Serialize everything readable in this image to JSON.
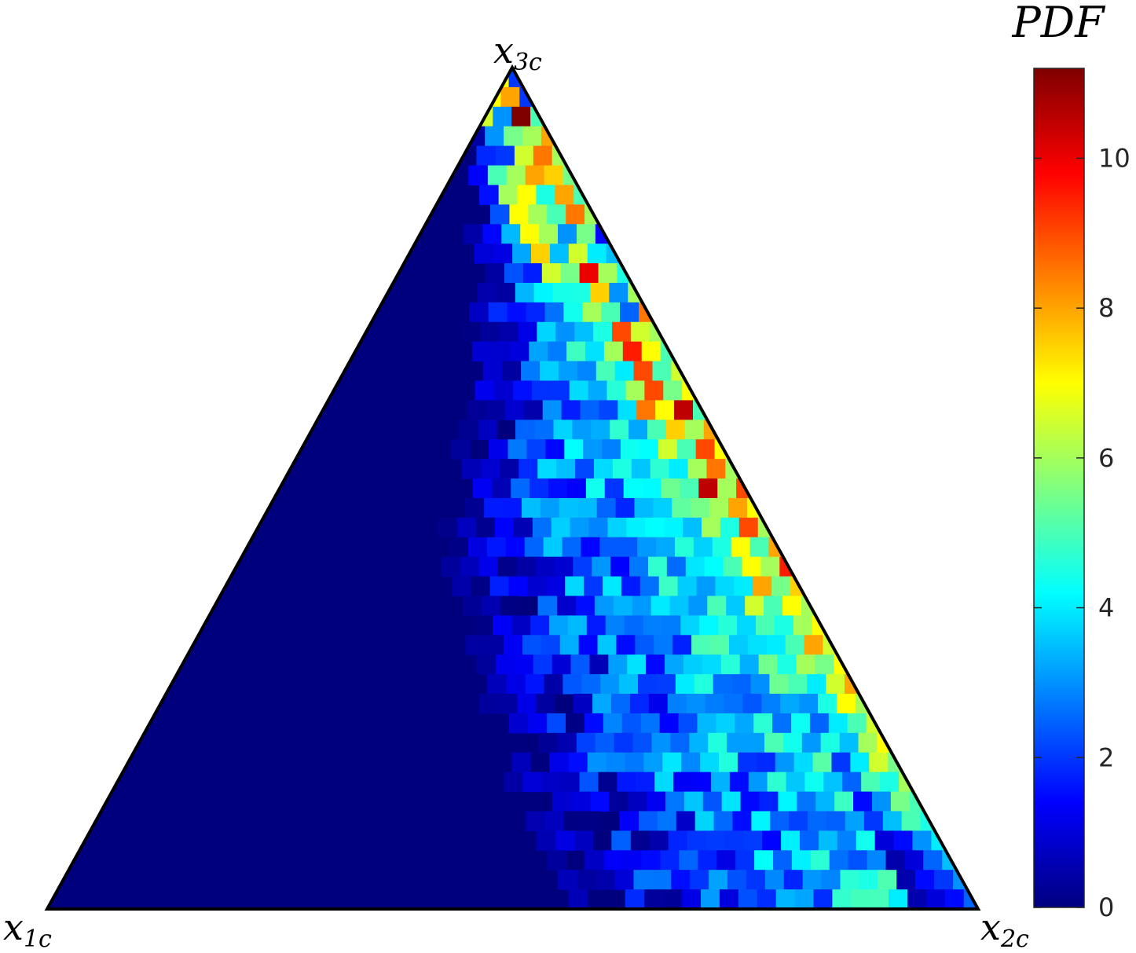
{
  "chart_data": {
    "type": "heatmap",
    "plot_kind": "ternary",
    "vertices": {
      "x1": "x",
      "x1_sub": "1c",
      "x2": "x",
      "x2_sub": "2c",
      "x3": "x",
      "x3_sub": "3c"
    },
    "colorbar": {
      "title": "PDF",
      "colormap": "jet",
      "range": [
        0,
        11.2
      ],
      "ticks": [
        0,
        2,
        4,
        6,
        8,
        10
      ],
      "tick_labels": [
        "0",
        "2",
        "4",
        "6",
        "8",
        "10"
      ]
    },
    "grid_rows": 43,
    "cell_rule": "PDF is approximately 0 in the region nearer vertex x1c; values rise toward the edge between x2c and x3c, mostly 3-7 with peaks near 11 close to the x3c apex",
    "cells": [
      [
        0,
        0,
        2
      ],
      [
        0,
        1,
        7
      ],
      [
        0,
        2,
        4
      ],
      [
        1,
        0,
        2
      ],
      [
        1,
        1,
        8
      ],
      [
        1,
        2,
        7
      ],
      [
        2,
        0,
        5
      ],
      [
        2,
        1,
        11.2
      ],
      [
        2,
        2,
        3
      ],
      [
        2,
        3,
        6.5
      ],
      [
        3,
        0,
        8
      ],
      [
        3,
        1,
        6
      ],
      [
        3,
        2,
        5.5
      ],
      [
        4,
        0,
        6
      ],
      [
        4,
        1,
        8.5
      ],
      [
        4,
        2,
        6.5
      ],
      [
        4,
        3,
        2
      ],
      [
        5,
        0,
        5.5
      ],
      [
        5,
        1,
        7.5
      ],
      [
        5,
        2,
        8
      ],
      [
        5,
        3,
        6
      ],
      [
        5,
        4,
        5
      ],
      [
        6,
        0,
        5
      ],
      [
        6,
        1,
        8
      ],
      [
        6,
        2,
        4.5
      ],
      [
        6,
        3,
        7
      ],
      [
        6,
        4,
        6
      ],
      [
        7,
        0,
        6
      ],
      [
        7,
        1,
        8.5
      ],
      [
        7,
        2,
        5
      ],
      [
        7,
        3,
        6
      ],
      [
        7,
        4,
        7
      ],
      [
        8,
        0,
        1.5
      ],
      [
        8,
        1,
        5.5
      ],
      [
        8,
        2,
        3
      ],
      [
        8,
        3,
        6
      ],
      [
        8,
        4,
        7
      ],
      [
        9,
        0,
        3.5
      ],
      [
        9,
        1,
        4
      ],
      [
        9,
        2,
        6.5
      ],
      [
        9,
        3,
        3.5
      ],
      [
        9,
        4,
        7.5
      ],
      [
        10,
        0,
        4.5
      ],
      [
        10,
        1,
        6
      ],
      [
        10,
        2,
        10
      ],
      [
        10,
        3,
        5.5
      ],
      [
        10,
        4,
        6.5
      ],
      [
        11,
        0,
        6
      ],
      [
        11,
        1,
        3
      ],
      [
        11,
        2,
        7.5
      ],
      [
        11,
        3,
        4.5
      ],
      [
        12,
        0,
        8.5
      ],
      [
        12,
        1,
        2.5
      ],
      [
        12,
        2,
        5
      ],
      [
        12,
        3,
        6
      ],
      [
        13,
        0,
        6
      ],
      [
        13,
        1,
        6.5
      ],
      [
        13,
        2,
        9
      ],
      [
        13,
        3,
        4.5
      ],
      [
        14,
        0,
        5
      ],
      [
        14,
        1,
        7
      ],
      [
        14,
        2,
        9.5
      ],
      [
        14,
        3,
        6
      ],
      [
        15,
        0,
        6.5
      ],
      [
        15,
        1,
        5
      ],
      [
        15,
        2,
        9
      ],
      [
        15,
        3,
        4
      ],
      [
        16,
        0,
        7
      ],
      [
        16,
        1,
        5.5
      ],
      [
        16,
        2,
        9
      ],
      [
        16,
        3,
        6
      ],
      [
        17,
        0,
        5
      ],
      [
        17,
        1,
        10.5
      ],
      [
        17,
        2,
        7
      ],
      [
        17,
        3,
        8.5
      ],
      [
        18,
        0,
        8
      ],
      [
        18,
        1,
        6
      ],
      [
        18,
        2,
        7.5
      ],
      [
        18,
        3,
        5
      ],
      [
        19,
        0,
        7
      ],
      [
        19,
        1,
        9
      ],
      [
        19,
        2,
        5
      ],
      [
        19,
        3,
        6.5
      ],
      [
        20,
        0,
        6
      ],
      [
        20,
        1,
        8.5
      ],
      [
        20,
        2,
        6
      ],
      [
        20,
        3,
        4
      ],
      [
        21,
        0,
        9
      ],
      [
        21,
        1,
        6
      ],
      [
        21,
        2,
        10.5
      ],
      [
        21,
        3,
        5
      ],
      [
        22,
        0,
        7
      ],
      [
        22,
        1,
        8
      ],
      [
        22,
        2,
        6
      ],
      [
        22,
        3,
        5.5
      ],
      [
        23,
        0,
        6
      ],
      [
        23,
        1,
        9
      ],
      [
        23,
        2,
        4.5
      ],
      [
        23,
        3,
        6
      ],
      [
        24,
        0,
        8
      ],
      [
        24,
        1,
        5
      ],
      [
        24,
        2,
        7
      ],
      [
        24,
        3,
        4.5
      ],
      [
        25,
        0,
        9.5
      ],
      [
        25,
        1,
        6
      ],
      [
        25,
        2,
        7
      ],
      [
        25,
        3,
        5
      ],
      [
        26,
        0,
        7.5
      ],
      [
        26,
        1,
        5.5
      ],
      [
        26,
        2,
        8
      ],
      [
        26,
        3,
        4
      ],
      [
        27,
        0,
        6
      ],
      [
        27,
        1,
        7
      ],
      [
        27,
        2,
        5
      ],
      [
        27,
        3,
        6.5
      ],
      [
        28,
        0,
        7
      ],
      [
        28,
        1,
        6
      ],
      [
        28,
        2,
        4.5
      ],
      [
        28,
        3,
        5
      ],
      [
        29,
        0,
        6.5
      ],
      [
        29,
        1,
        8
      ],
      [
        29,
        2,
        5
      ],
      [
        29,
        3,
        4
      ],
      [
        30,
        0,
        7
      ],
      [
        30,
        1,
        5.5
      ],
      [
        30,
        2,
        6
      ],
      [
        30,
        3,
        4.5
      ],
      [
        31,
        0,
        8
      ],
      [
        31,
        1,
        6.5
      ],
      [
        31,
        2,
        4
      ],
      [
        31,
        3,
        5
      ],
      [
        32,
        0,
        6
      ],
      [
        32,
        1,
        7
      ],
      [
        32,
        2,
        4.5
      ],
      [
        32,
        3,
        3
      ],
      [
        33,
        0,
        6.5
      ],
      [
        33,
        1,
        5
      ],
      [
        33,
        2,
        4
      ],
      [
        33,
        3,
        2.5
      ],
      [
        34,
        0,
        7
      ],
      [
        34,
        1,
        6
      ],
      [
        34,
        2,
        3.5
      ],
      [
        34,
        3,
        4.5
      ],
      [
        35,
        0,
        5.5
      ],
      [
        35,
        1,
        6.5
      ],
      [
        35,
        2,
        4
      ],
      [
        35,
        3,
        2
      ],
      [
        36,
        0,
        6
      ],
      [
        36,
        1,
        4.5
      ],
      [
        36,
        2,
        5
      ],
      [
        36,
        3,
        2.5
      ],
      [
        37,
        0,
        5
      ],
      [
        37,
        1,
        5.5
      ],
      [
        37,
        2,
        3
      ],
      [
        37,
        3,
        1.5
      ],
      [
        38,
        0,
        4.5
      ],
      [
        38,
        1,
        5
      ],
      [
        38,
        2,
        3.5
      ],
      [
        38,
        3,
        2
      ],
      [
        39,
        0,
        4
      ],
      [
        39,
        1,
        3
      ],
      [
        39,
        2,
        1.5
      ],
      [
        39,
        3,
        1
      ],
      [
        40,
        0,
        3.5
      ],
      [
        40,
        1,
        2.5
      ],
      [
        40,
        2,
        1
      ],
      [
        40,
        3,
        0.5
      ],
      [
        41,
        0,
        3
      ],
      [
        41,
        1,
        2
      ],
      [
        41,
        2,
        1.5
      ],
      [
        41,
        3,
        0.5
      ],
      [
        42,
        0,
        2.5
      ],
      [
        42,
        1,
        1.5
      ],
      [
        42,
        2,
        1
      ],
      [
        42,
        3,
        0.5
      ]
    ]
  }
}
